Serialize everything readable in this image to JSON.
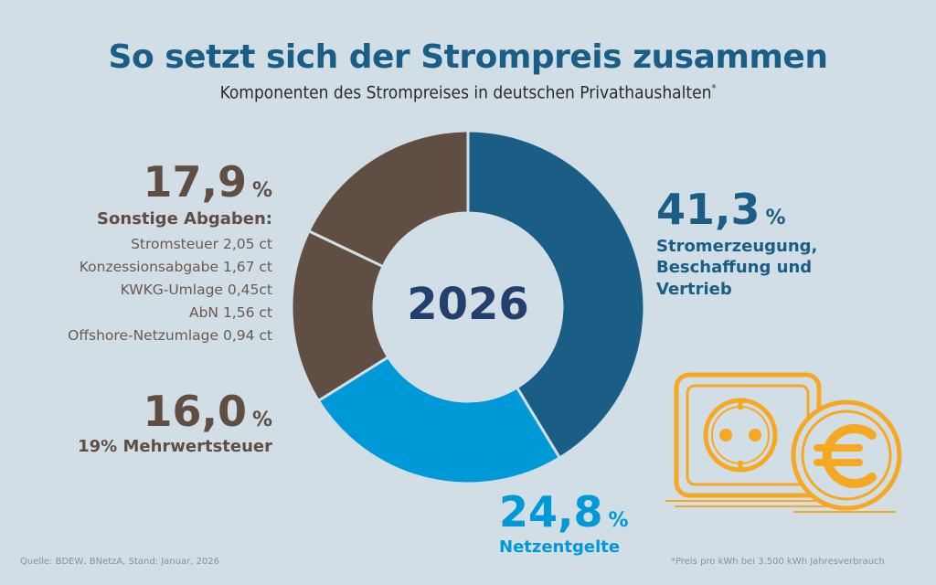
{
  "header": {
    "title": "So setzt sich der Strompreis zusammen",
    "subtitle": "Komponenten des Strompreises in deutschen Privathaushalten",
    "subtitle_mark": "*"
  },
  "chart_data": {
    "type": "pie",
    "variant": "donut",
    "title": "So setzt sich der Strompreis zusammen",
    "subtitle": "Komponenten des Strompreises in deutschen Privathaushalten*",
    "center_label": "2026",
    "start": "top",
    "direction": "clockwise",
    "slices": [
      {
        "name": "Stromerzeugung, Beschaffung und Vertrieb",
        "value": 41.3,
        "value_label": "41,3",
        "color": "#1a5e85"
      },
      {
        "name": "Netzentgelte",
        "value": 24.8,
        "value_label": "24,8",
        "color": "#0099d8"
      },
      {
        "name": "19% Mehrwertsteuer",
        "value": 16.0,
        "value_label": "16,0",
        "color": "#5f4e41"
      },
      {
        "name": "Sonstige Abgaben",
        "value": 17.9,
        "value_label": "17,9",
        "color": "#5f4e41"
      }
    ],
    "unit": "%"
  },
  "labels": {
    "percent_symbol": "%",
    "stromerzeugung": {
      "value": "41,3",
      "lines": [
        "Stromerzeugung,",
        "Beschaffung und",
        "Vertrieb"
      ]
    },
    "netzentgelte": {
      "value": "24,8",
      "lines": [
        "Netzentgelte"
      ]
    },
    "mehrwertsteuer": {
      "value": "16,0",
      "lines": [
        "19% Mehrwertsteuer"
      ]
    },
    "sonstige": {
      "value": "17,9",
      "heading": "Sonstige Abgaben:",
      "items": [
        "Stromsteuer 2,05 ct",
        "Konzessionsabgabe 1,67 ct",
        "KWKG-Umlage 0,45ct",
        "AbN 1,56 ct",
        "Offshore-Netzumlage 0,94 ct"
      ]
    }
  },
  "colors": {
    "background": "#d1dee6",
    "dark_blue": "#1a5e85",
    "light_blue": "#0099d8",
    "brown": "#5f4e41",
    "center_text": "#233f6e",
    "illustration": "#f7a823"
  },
  "illustration": {
    "icons": [
      "power-socket-icon",
      "euro-coin-icon"
    ]
  },
  "footer": {
    "source": "Quelle: BDEW, BNetzA, Stand: Januar, 2026",
    "note": "*Preis pro kWh bei 3.500 kWh Jahresverbrauch"
  }
}
